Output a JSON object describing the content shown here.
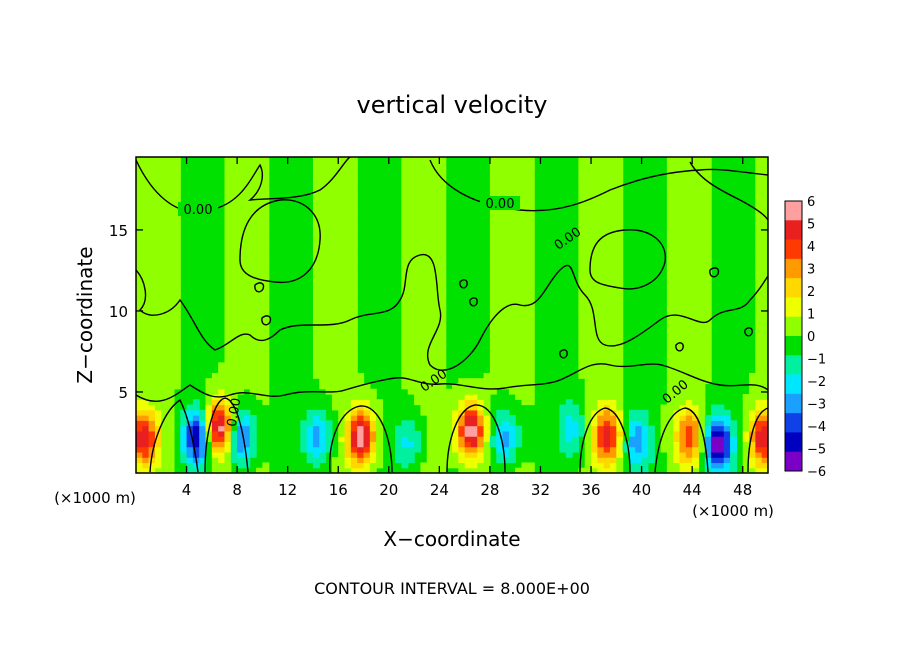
{
  "chart_data": {
    "type": "heatmap",
    "title": "vertical velocity",
    "xlabel": "X−coordinate",
    "ylabel": "Z−coordinate",
    "x_unit_left": "(×1000 m)",
    "x_unit_right": "(×1000 m)",
    "footer": "CONTOUR INTERVAL = 8.000E+00",
    "xlim": [
      0,
      50
    ],
    "ylim": [
      0,
      19.5
    ],
    "x_ticks": [
      4,
      8,
      12,
      16,
      20,
      24,
      28,
      32,
      36,
      40,
      44,
      48
    ],
    "y_ticks": [
      5,
      10,
      15
    ],
    "colorbar": {
      "min": -6,
      "max": 6,
      "tick_labels": [
        "6",
        "5",
        "4",
        "3",
        "2",
        "1",
        "0",
        "−1",
        "−2",
        "−3",
        "−4",
        "−5",
        "−6"
      ],
      "colors": [
        "#ffa0a0",
        "#e82020",
        "#ff3a00",
        "#ff9a00",
        "#ffd800",
        "#eeff00",
        "#90ff00",
        "#00dd00",
        "#00f0a0",
        "#00e6ff",
        "#1aa0ff",
        "#1040e8",
        "#0000c0",
        "#7a00c8"
      ]
    },
    "contour_labels": [
      "0.00",
      "0.00",
      "0.00",
      "0.00",
      "0.00",
      "0.00"
    ],
    "updrafts": [
      {
        "x": 0.6,
        "z": 2.2,
        "w": 5
      },
      {
        "x": 6.6,
        "z": 2.8,
        "w": 6
      },
      {
        "x": 17.8,
        "z": 2.2,
        "w": 6
      },
      {
        "x": 26.5,
        "z": 2.6,
        "w": 6
      },
      {
        "x": 37.3,
        "z": 2.3,
        "w": 5
      },
      {
        "x": 43.8,
        "z": 2.3,
        "w": 4
      },
      {
        "x": 49.6,
        "z": 2.2,
        "w": 5
      }
    ],
    "downdrafts": [
      {
        "x": 4.8,
        "z": 2.2,
        "w": -5
      },
      {
        "x": 8.3,
        "z": 2.2,
        "w": -4
      },
      {
        "x": 14.4,
        "z": 2.2,
        "w": -3
      },
      {
        "x": 21.5,
        "z": 1.9,
        "w": -2
      },
      {
        "x": 29.2,
        "z": 2.2,
        "w": -3
      },
      {
        "x": 34.5,
        "z": 2.8,
        "w": -2
      },
      {
        "x": 39.6,
        "z": 2.0,
        "w": -3
      },
      {
        "x": 46.0,
        "z": 1.8,
        "w": -6
      }
    ]
  }
}
